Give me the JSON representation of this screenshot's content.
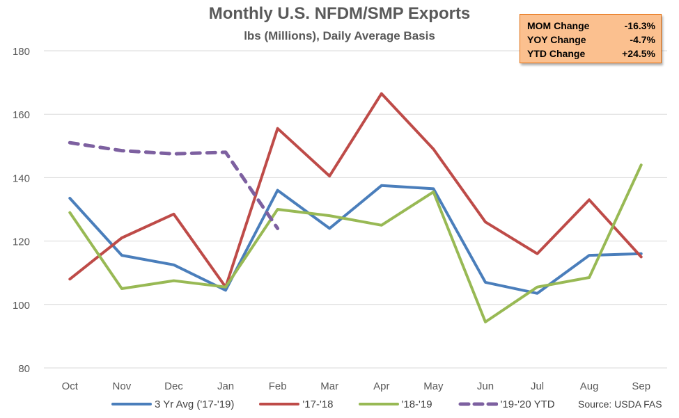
{
  "chart_data": {
    "type": "line",
    "title": "Monthly U.S. NFDM/SMP Exports",
    "subtitle": "lbs (Millions), Daily Average Basis",
    "categories": [
      "Oct",
      "Nov",
      "Dec",
      "Jan",
      "Feb",
      "Mar",
      "Apr",
      "May",
      "Jun",
      "Jul",
      "Aug",
      "Sep"
    ],
    "ylim": [
      80,
      180
    ],
    "yticks": [
      80,
      100,
      120,
      140,
      160,
      180
    ],
    "grid": true,
    "legend_position": "bottom",
    "series": [
      {
        "name": "3 Yr Avg ('17-'19)",
        "color": "#4a7ebb",
        "dash": false,
        "values": [
          133.5,
          115.5,
          112.5,
          104.5,
          136,
          124,
          137.5,
          136.5,
          107,
          103.5,
          115.5,
          116
        ]
      },
      {
        "name": "'17-'18",
        "color": "#be4b48",
        "dash": false,
        "values": [
          108,
          121,
          128.5,
          105.5,
          155.5,
          140.5,
          166.5,
          149,
          126,
          116,
          133,
          115
        ]
      },
      {
        "name": "'18-'19",
        "color": "#98b954",
        "dash": false,
        "values": [
          129,
          105,
          107.5,
          105.5,
          130,
          128,
          125,
          135.5,
          94.5,
          105.5,
          108.5,
          144
        ]
      },
      {
        "name": "'19-'20 YTD",
        "color": "#7d60a0",
        "dash": true,
        "values": [
          151,
          148.5,
          147.5,
          148,
          124,
          null,
          null,
          null,
          null,
          null,
          null,
          null
        ]
      }
    ],
    "annotations": {
      "stats": [
        {
          "label": "MOM Change",
          "value": "-16.3%"
        },
        {
          "label": "YOY Change",
          "value": "-4.7%"
        },
        {
          "label": "YTD Change",
          "value": "+24.5%"
        }
      ],
      "source": "Source: USDA FAS"
    }
  }
}
